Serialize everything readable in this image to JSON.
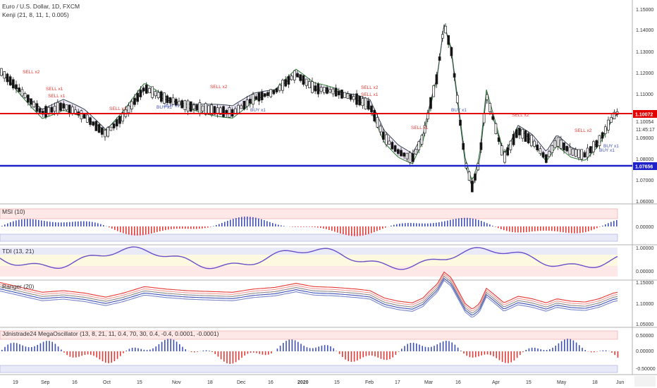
{
  "header": {
    "symbol": "Euro / U.S. Dollar, 1D, FXCM",
    "indicator1": "Kenji (21, 8, 11, 1, 0.005)"
  },
  "panes": {
    "msi": "MSI (10)",
    "tdi": "TDI (13, 21)",
    "ranger": "Ranger (20)",
    "mega": "Jdnistrade24 MegaOscillator (13, 8, 21, 11, 0.4, 70, 30, 0.4, -0.4, 0.0001, -0.0001)"
  },
  "price_axis": [
    "1.15000",
    "1.14000",
    "1.13000",
    "1.12000",
    "1.11000",
    "1.10054",
    "1.09000",
    "1.08000",
    "1.07000",
    "1.06000"
  ],
  "price_badges": {
    "red_level": "1.10072",
    "countdown": "11:45:17",
    "blue_level": "1.07656"
  },
  "msi_axis": [
    "0.00000"
  ],
  "tdi_axis": [
    "1.00000",
    "0.00000"
  ],
  "ranger_axis": [
    "1.15000",
    "1.10000",
    "1.05000"
  ],
  "mega_axis": [
    "0.50000",
    "0.00000",
    "-0.50000"
  ],
  "time_axis": [
    "19",
    "Sep",
    "16",
    "Oct",
    "15",
    "Nov",
    "18",
    "Dec",
    "16",
    "2020",
    "15",
    "Feb",
    "17",
    "Mar",
    "16",
    "Apr",
    "15",
    "May",
    "18",
    "Jun"
  ],
  "signals": [
    {
      "text": "SELL x2",
      "kind": "sell"
    },
    {
      "text": "SELL x1",
      "kind": "sell"
    },
    {
      "text": "SELL x1",
      "kind": "sell"
    },
    {
      "text": "SELL x2",
      "kind": "sell"
    },
    {
      "text": "SELL x1",
      "kind": "sell"
    },
    {
      "text": "SELL x2",
      "kind": "sell"
    },
    {
      "text": "SELL x2",
      "kind": "sell"
    },
    {
      "text": "SELL x1",
      "kind": "sell"
    },
    {
      "text": "SELL x2",
      "kind": "sell"
    },
    {
      "text": "SELL x1",
      "kind": "sell"
    },
    {
      "text": "BUY x1",
      "kind": "buy"
    },
    {
      "text": "BUY x1",
      "kind": "buy"
    },
    {
      "text": "BUY x1",
      "kind": "buy"
    },
    {
      "text": "BUY x1",
      "kind": "buy"
    },
    {
      "text": "BUY x1",
      "kind": "buy"
    },
    {
      "text": "BUY x1",
      "kind": "buy"
    }
  ],
  "colors": {
    "up": "#ffffff",
    "down": "#000000",
    "sell": "#e53935",
    "buy": "#3f51b5",
    "red_line": "#e00000",
    "blue_line": "#1e22c8"
  }
}
